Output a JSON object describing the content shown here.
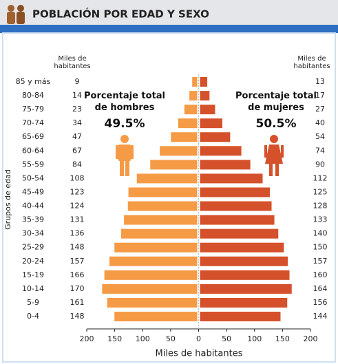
{
  "chart_data": {
    "type": "pyramid",
    "title": "POBLACIÓN POR EDAD Y SEXO",
    "y_axis_label": "Grupos de edad",
    "x_axis_label": "Miles de habitantes",
    "left_column_header": "Miles de habitantes",
    "right_column_header": "Miles de habitantes",
    "annotations": {
      "men_caption": "Porcentaje total de hombres",
      "men_percent": "49.5%",
      "women_caption": "Porcentaje total de mujeres",
      "women_percent": "50.5%"
    },
    "categories": [
      "85 y más",
      "80-84",
      "75-79",
      "70-74",
      "65-69",
      "60-64",
      "55-59",
      "50-54",
      "45-49",
      "40-44",
      "35-39",
      "30-34",
      "25-29",
      "20-24",
      "15-19",
      "10-14",
      "5-9",
      "0-4"
    ],
    "series": [
      {
        "name": "Hombres",
        "color": "#f59b46",
        "side": "left",
        "values": [
          9,
          14,
          23,
          34,
          47,
          67,
          84,
          108,
          123,
          124,
          131,
          136,
          148,
          157,
          166,
          170,
          161,
          148
        ]
      },
      {
        "name": "Mujeres",
        "color": "#d5512b",
        "side": "right",
        "values": [
          13,
          17,
          27,
          40,
          54,
          74,
          90,
          112,
          125,
          128,
          133,
          140,
          150,
          157,
          160,
          164,
          156,
          144
        ]
      }
    ],
    "xlim": [
      -200,
      200
    ],
    "xticks": [
      {
        "value": -200,
        "label": "200"
      },
      {
        "value": -150,
        "label": "150"
      },
      {
        "value": -100,
        "label": "100"
      },
      {
        "value": -50,
        "label": "50"
      },
      0,
      50,
      100,
      150,
      200
    ]
  }
}
